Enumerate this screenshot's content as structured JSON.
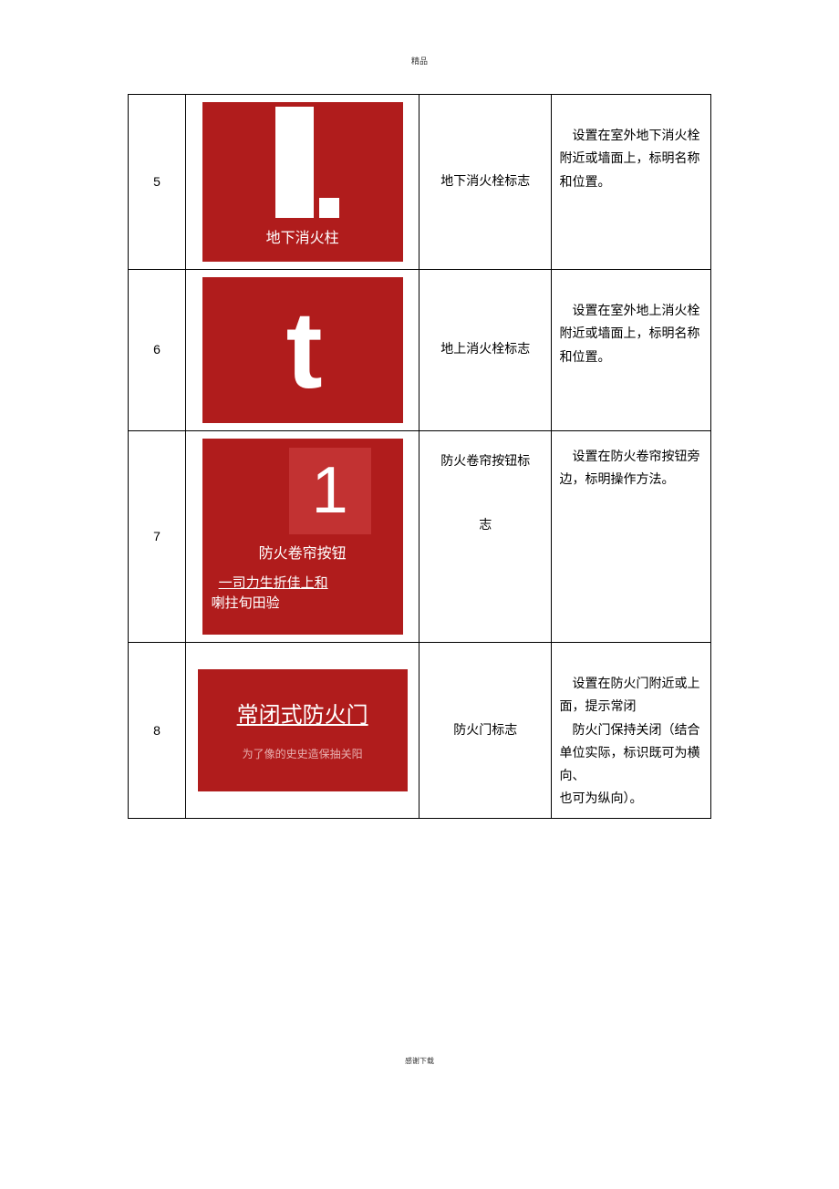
{
  "page": {
    "header": "精品",
    "footer": "感谢下载"
  },
  "table": {
    "rows": [
      {
        "num": "5",
        "sign": {
          "type": "underground-hydrant",
          "bg_color": "#b01c1c",
          "text_color": "#ffffff",
          "caption": "地下消火柱"
        },
        "name": "地下消火栓标志",
        "desc": "　设置在室外地下消火栓附近或墙面上，标明名称和位置。"
      },
      {
        "num": "6",
        "sign": {
          "type": "above-ground-hydrant",
          "bg_color": "#b01c1c",
          "text_color": "#ffffff",
          "glyph": "t"
        },
        "name": "地上消火栓标志",
        "desc": "　设置在室外地上消火栓附近或墙面上，标明名称和位置。"
      },
      {
        "num": "7",
        "sign": {
          "type": "fire-shutter-button",
          "bg_color": "#b01c1c",
          "inner_bg": "#c23232",
          "text_color": "#ffffff",
          "glyph": "1",
          "caption_main": "防火卷帘按钮",
          "caption_sub": "一司力生折佳上和",
          "caption_sub2": "喇拄旬田验"
        },
        "name_line1": "防火卷帘按钮标",
        "name_line2": "志",
        "desc": "　设置在防火卷帘按钮旁边，标明操作方法。"
      },
      {
        "num": "8",
        "sign": {
          "type": "fire-door",
          "bg_color": "#b01c1c",
          "text_color": "#ffffff",
          "sub_color": "#e8b0b0",
          "title": "常闭式防火门",
          "subtitle": "为了像的史史造保抽关阳"
        },
        "name": "防火门标志",
        "desc_p1": "　设置在防火门附近或上面，提示常闭",
        "desc_p2": "　防火门保持关闭（结合单位实际，标识既可为横向、",
        "desc_p3": "也可为纵向）。"
      }
    ]
  }
}
